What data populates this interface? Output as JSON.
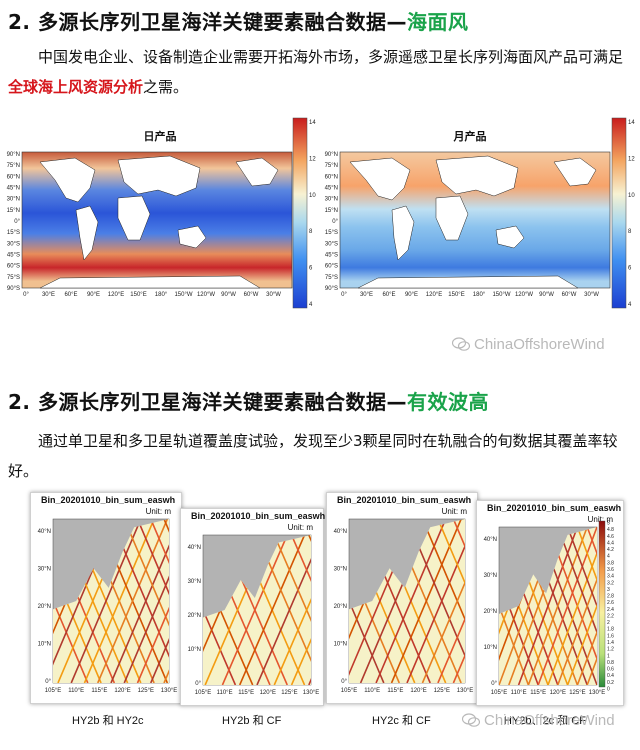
{
  "section1": {
    "heading_prefix": "2. 多源长序列卫星海洋关键要素融合数据—",
    "heading_highlight": "海面风",
    "para_before": "中国发电企业、设备制造企业需要开拓海外市场，多源遥感卫星长序列海面风产品可满足",
    "para_highlight": "全球海上风资源分析",
    "para_after": "之需。",
    "maps": [
      {
        "title": "日产品"
      },
      {
        "title": "月产品"
      }
    ],
    "lat_ticks": [
      "90°N",
      "75°N",
      "60°N",
      "45°N",
      "30°N",
      "15°N",
      "0°",
      "15°S",
      "30°S",
      "45°S",
      "60°S",
      "75°S",
      "90°S"
    ],
    "lon_ticks": [
      "0°",
      "30°E",
      "60°E",
      "90°E",
      "120°E",
      "150°E",
      "180°",
      "150°W",
      "120°W",
      "90°W",
      "60°W",
      "30°W"
    ],
    "colorbar_ticks": [
      "14",
      "12",
      "10",
      "8",
      "6",
      "4"
    ]
  },
  "watermark": {
    "text": "ChinaOffshoreWind"
  },
  "section2": {
    "heading_prefix": "2. 多源长序列卫星海洋关键要素融合数据—",
    "heading_highlight": "有效波高",
    "paragraph": "通过单卫星和多卫星轨道覆盖度试验，发现至少3颗星同时在轨融合的旬数据其覆盖率较好。",
    "panels": [
      {
        "title": "Bin_20201010_bin_sum_easwh",
        "unit": "Unit: m",
        "caption": "HY2b 和 HY2c"
      },
      {
        "title": "Bin_20201010_bin_sum_easwh",
        "unit": "Unit: m",
        "caption": "HY2b 和 CF"
      },
      {
        "title": "Bin_20201010_bin_sum_easwh",
        "unit": "Unit: m",
        "caption": "HY2c 和 CF"
      },
      {
        "title": "Bin_20201010_bin_sum_easwh",
        "unit": "Unit: m",
        "caption": "HY2b、2c 和 CF"
      }
    ],
    "lat_ticks": [
      "40°N",
      "30°N",
      "20°N",
      "10°N",
      "0°"
    ],
    "lon_ticks": [
      "105°E",
      "110°E",
      "115°E",
      "120°E",
      "125°E",
      "130°E"
    ],
    "colorbar_ticks": [
      "5",
      "4.8",
      "4.6",
      "4.4",
      "4.2",
      "4",
      "3.8",
      "3.6",
      "3.4",
      "3.2",
      "3",
      "2.8",
      "2.6",
      "2.4",
      "2.2",
      "2",
      "1.8",
      "1.6",
      "1.4",
      "1.2",
      "1",
      "0.8",
      "0.6",
      "0.4",
      "0.2",
      "0"
    ]
  },
  "colors": {
    "highlight_green": "#1aa34a",
    "highlight_red": "#d6161c",
    "land_gray": "#b3b3b3"
  }
}
